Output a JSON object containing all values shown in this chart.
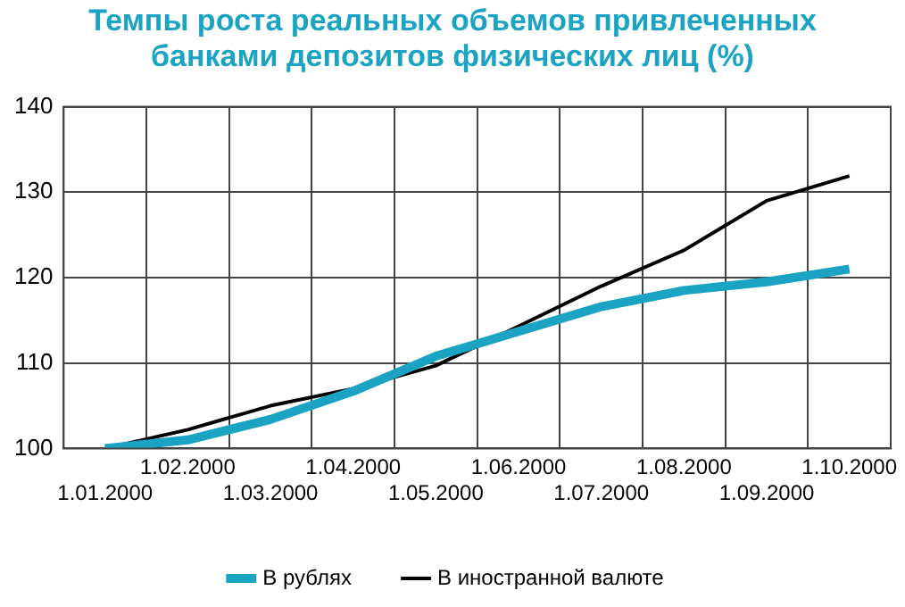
{
  "chart_data": {
    "type": "line",
    "title": "Темпы роста реальных объемов привлеченных банками депозитов физических лиц (%)",
    "categories": [
      "1.01.2000",
      "1.02.2000",
      "1.03.2000",
      "1.04.2000",
      "1.05.2000",
      "1.06.2000",
      "1.07.2000",
      "1.08.2000",
      "1.09.2000",
      "1.10.2000"
    ],
    "series": [
      {
        "name": "В рублях",
        "color": "#1ba3c4",
        "values": [
          100,
          101,
          103.4,
          106.7,
          110.8,
          113.7,
          116.6,
          118.5,
          119.5,
          121
        ]
      },
      {
        "name": "В иностранной валюте",
        "color": "#000000",
        "values": [
          100,
          102.2,
          105,
          107,
          109.7,
          114.3,
          119,
          123.2,
          129,
          131.9
        ]
      }
    ],
    "ylim": [
      100,
      140
    ],
    "yticks": [
      100,
      110,
      120,
      130,
      140
    ],
    "grid": true,
    "legend": "bottom",
    "marker": "none",
    "line_style": "solid"
  }
}
